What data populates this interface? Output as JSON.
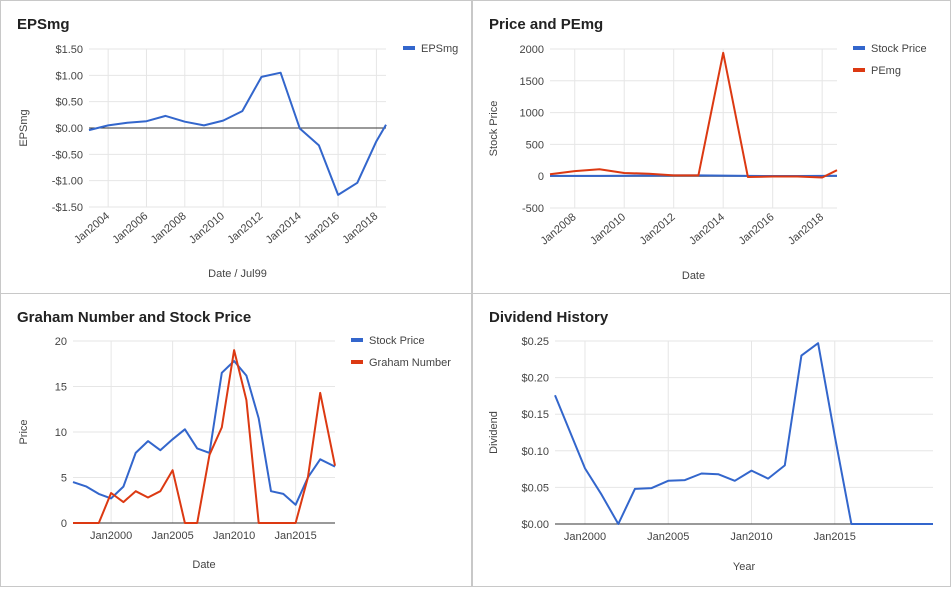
{
  "colors": {
    "blue": "#3366cc",
    "red": "#dc3912",
    "grid": "#e6e6e6",
    "axis": "#333333"
  },
  "chart_data": [
    {
      "id": "eps",
      "type": "line",
      "title": "EPSmg",
      "xlabel": "Date / Jul99",
      "ylabel": "EPSmg",
      "x_ticks": [
        "Jan2004",
        "Jan2006",
        "Jan2008",
        "Jan2010",
        "Jan2012",
        "Jan2014",
        "Jan2016",
        "Jan2018"
      ],
      "y_ticks": [
        "$1.50",
        "$1.00",
        "$0.50",
        "$0.00",
        "-$0.50",
        "-$1.00",
        "-$1.50"
      ],
      "xlim": [
        2003.0,
        2018.5
      ],
      "ylim": [
        -1.5,
        1.5
      ],
      "legend_position": "right",
      "series": [
        {
          "name": "EPSmg",
          "color": "blue",
          "points": [
            [
              2003.0,
              -0.04
            ],
            [
              2004.0,
              0.05
            ],
            [
              2005.0,
              0.1
            ],
            [
              2006.0,
              0.13
            ],
            [
              2007.0,
              0.23
            ],
            [
              2008.0,
              0.12
            ],
            [
              2009.0,
              0.05
            ],
            [
              2010.0,
              0.14
            ],
            [
              2011.0,
              0.32
            ],
            [
              2012.0,
              0.97
            ],
            [
              2013.0,
              1.05
            ],
            [
              2014.0,
              -0.01
            ],
            [
              2015.0,
              -0.33
            ],
            [
              2016.0,
              -1.27
            ],
            [
              2017.0,
              -1.04
            ],
            [
              2018.0,
              -0.25
            ],
            [
              2018.5,
              0.06
            ]
          ]
        }
      ]
    },
    {
      "id": "price",
      "type": "line",
      "title": "Price and PEmg",
      "xlabel": "Date",
      "ylabel": "Stock Price",
      "x_ticks": [
        "Jan2008",
        "Jan2010",
        "Jan2012",
        "Jan2014",
        "Jan2016",
        "Jan2018"
      ],
      "y_ticks": [
        "2000",
        "1500",
        "1000",
        "500",
        "0",
        "-500"
      ],
      "xlim": [
        2007.0,
        2018.6
      ],
      "ylim": [
        -500,
        2000
      ],
      "legend_position": "right",
      "series": [
        {
          "name": "Stock Price",
          "color": "blue",
          "points": [
            [
              2007.0,
              5
            ],
            [
              2009.0,
              5
            ],
            [
              2010.0,
              8
            ],
            [
              2011.0,
              10
            ],
            [
              2012.0,
              12
            ],
            [
              2013.0,
              12
            ],
            [
              2014.0,
              10
            ],
            [
              2015.0,
              4
            ],
            [
              2016.0,
              3
            ],
            [
              2017.0,
              3
            ],
            [
              2018.0,
              4
            ],
            [
              2018.6,
              7
            ]
          ]
        },
        {
          "name": "PEmg",
          "color": "red",
          "points": [
            [
              2007.0,
              30
            ],
            [
              2008.0,
              80
            ],
            [
              2009.0,
              110
            ],
            [
              2010.0,
              50
            ],
            [
              2011.0,
              40
            ],
            [
              2012.0,
              12
            ],
            [
              2013.0,
              12
            ],
            [
              2014.0,
              1940
            ],
            [
              2015.0,
              -12
            ],
            [
              2016.0,
              -4
            ],
            [
              2017.0,
              -4
            ],
            [
              2018.0,
              -20
            ],
            [
              2018.6,
              95
            ]
          ]
        }
      ]
    },
    {
      "id": "graham",
      "type": "line",
      "title": "Graham Number and Stock Price",
      "xlabel": "Date",
      "ylabel": "Price",
      "x_ticks": [
        "Jan2000",
        "Jan2005",
        "Jan2010",
        "Jan2015"
      ],
      "y_ticks": [
        "20",
        "15",
        "10",
        "5",
        "0"
      ],
      "xlim": [
        1996.9,
        2018.2
      ],
      "ylim": [
        0,
        20
      ],
      "legend_position": "right",
      "series": [
        {
          "name": "Stock Price",
          "color": "blue",
          "points": [
            [
              1996.9,
              4.5
            ],
            [
              1998.0,
              4.0
            ],
            [
              1999.0,
              3.2
            ],
            [
              2000.0,
              2.7
            ],
            [
              2001.0,
              4.0
            ],
            [
              2002.0,
              7.7
            ],
            [
              2003.0,
              9.0
            ],
            [
              2004.0,
              8.0
            ],
            [
              2005.0,
              9.2
            ],
            [
              2006.0,
              10.3
            ],
            [
              2007.0,
              8.2
            ],
            [
              2008.0,
              7.7
            ],
            [
              2009.0,
              16.5
            ],
            [
              2010.0,
              17.8
            ],
            [
              2011.0,
              16.2
            ],
            [
              2012.0,
              11.5
            ],
            [
              2013.0,
              3.5
            ],
            [
              2014.0,
              3.2
            ],
            [
              2015.0,
              2.0
            ],
            [
              2016.0,
              5.0
            ],
            [
              2017.0,
              7.0
            ],
            [
              2018.2,
              6.2
            ]
          ]
        },
        {
          "name": "Graham Number",
          "color": "red",
          "points": [
            [
              1996.9,
              0
            ],
            [
              1999.0,
              0
            ],
            [
              2000.0,
              3.3
            ],
            [
              2001.0,
              2.3
            ],
            [
              2002.0,
              3.5
            ],
            [
              2003.0,
              2.8
            ],
            [
              2004.0,
              3.5
            ],
            [
              2005.0,
              5.8
            ],
            [
              2006.0,
              0
            ],
            [
              2007.0,
              0
            ],
            [
              2008.0,
              7.5
            ],
            [
              2009.0,
              10.5
            ],
            [
              2010.0,
              19.0
            ],
            [
              2011.0,
              13.5
            ],
            [
              2012.0,
              0
            ],
            [
              2015.0,
              0
            ],
            [
              2016.0,
              5.0
            ],
            [
              2017.0,
              14.3
            ],
            [
              2018.2,
              6.3
            ]
          ]
        }
      ]
    },
    {
      "id": "dividend",
      "type": "line",
      "title": "Dividend History",
      "xlabel": "Year",
      "ylabel": "Dividend",
      "x_ticks": [
        "Jan2000",
        "Jan2005",
        "Jan2010",
        "Jan2015"
      ],
      "y_ticks": [
        "$0.25",
        "$0.20",
        "$0.15",
        "$0.10",
        "$0.05",
        "$0.00"
      ],
      "xlim": [
        1998.2,
        2020.9
      ],
      "ylim": [
        0,
        0.25
      ],
      "legend_position": "none",
      "series": [
        {
          "name": "",
          "color": "blue",
          "points": [
            [
              1998.2,
              0.176
            ],
            [
              2000.0,
              0.076
            ],
            [
              2001.0,
              0.04
            ],
            [
              2002.0,
              0.0
            ],
            [
              2003.0,
              0.048
            ],
            [
              2004.0,
              0.049
            ],
            [
              2005.0,
              0.059
            ],
            [
              2006.0,
              0.06
            ],
            [
              2007.0,
              0.069
            ],
            [
              2008.0,
              0.068
            ],
            [
              2009.0,
              0.059
            ],
            [
              2010.0,
              0.073
            ],
            [
              2011.0,
              0.062
            ],
            [
              2012.0,
              0.08
            ],
            [
              2013.0,
              0.23
            ],
            [
              2014.0,
              0.247
            ],
            [
              2015.0,
              0.12
            ],
            [
              2016.0,
              0.0
            ],
            [
              2018.0,
              0.0
            ],
            [
              2020.9,
              0.0
            ]
          ]
        }
      ]
    }
  ]
}
